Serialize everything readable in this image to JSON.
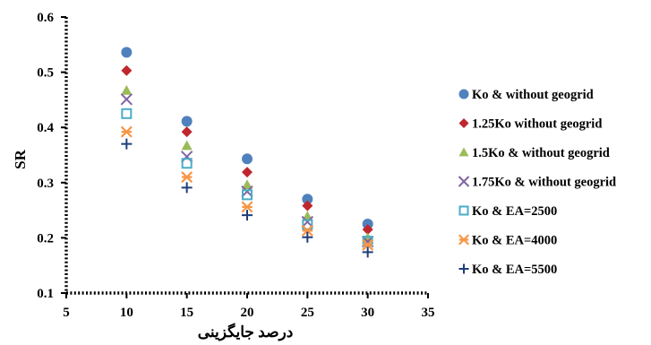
{
  "chart_data": {
    "type": "scatter",
    "title": "",
    "xlabel": "درصد جایگزینی",
    "ylabel": "SR",
    "xlim": [
      5,
      35
    ],
    "ylim": [
      0.1,
      0.6
    ],
    "xticks": [
      5,
      10,
      15,
      20,
      25,
      30,
      35
    ],
    "yticks": [
      0.1,
      0.2,
      0.3,
      0.4,
      0.5,
      0.6
    ],
    "ytick_labels": [
      "0.1",
      "0.2",
      "0.3",
      "0.4",
      "0.5",
      "0.6"
    ],
    "grid": false,
    "legend_position": "right",
    "x": [
      10,
      15,
      20,
      25,
      30
    ],
    "series": [
      {
        "name": "Ko & without geogrid",
        "marker": "circle",
        "color": "#4F81BD",
        "values": [
          0.536,
          0.411,
          0.343,
          0.27,
          0.225
        ]
      },
      {
        "name": "1.25Ko without geogrid",
        "marker": "diamond",
        "color": "#C0262D",
        "values": [
          0.503,
          0.392,
          0.319,
          0.258,
          0.215
        ]
      },
      {
        "name": "1.5Ko & without geogrid",
        "marker": "triangle",
        "color": "#9BBB59",
        "values": [
          0.467,
          0.367,
          0.296,
          0.239,
          0.2
        ]
      },
      {
        "name": "1.75Ko & without geogrid",
        "marker": "x",
        "color": "#8064A2",
        "values": [
          0.451,
          0.347,
          0.284,
          0.229,
          0.193
        ]
      },
      {
        "name": "Ko & EA=2500",
        "marker": "square",
        "color": "#4BACC6",
        "values": [
          0.425,
          0.335,
          0.278,
          0.224,
          0.194
        ]
      },
      {
        "name": "Ko & EA=4000",
        "marker": "asterisk",
        "color": "#F79646",
        "values": [
          0.392,
          0.31,
          0.256,
          0.213,
          0.187
        ]
      },
      {
        "name": "Ko & EA=5500",
        "marker": "plus",
        "color": "#1F3E79",
        "values": [
          0.37,
          0.291,
          0.241,
          0.201,
          0.174
        ]
      }
    ]
  }
}
